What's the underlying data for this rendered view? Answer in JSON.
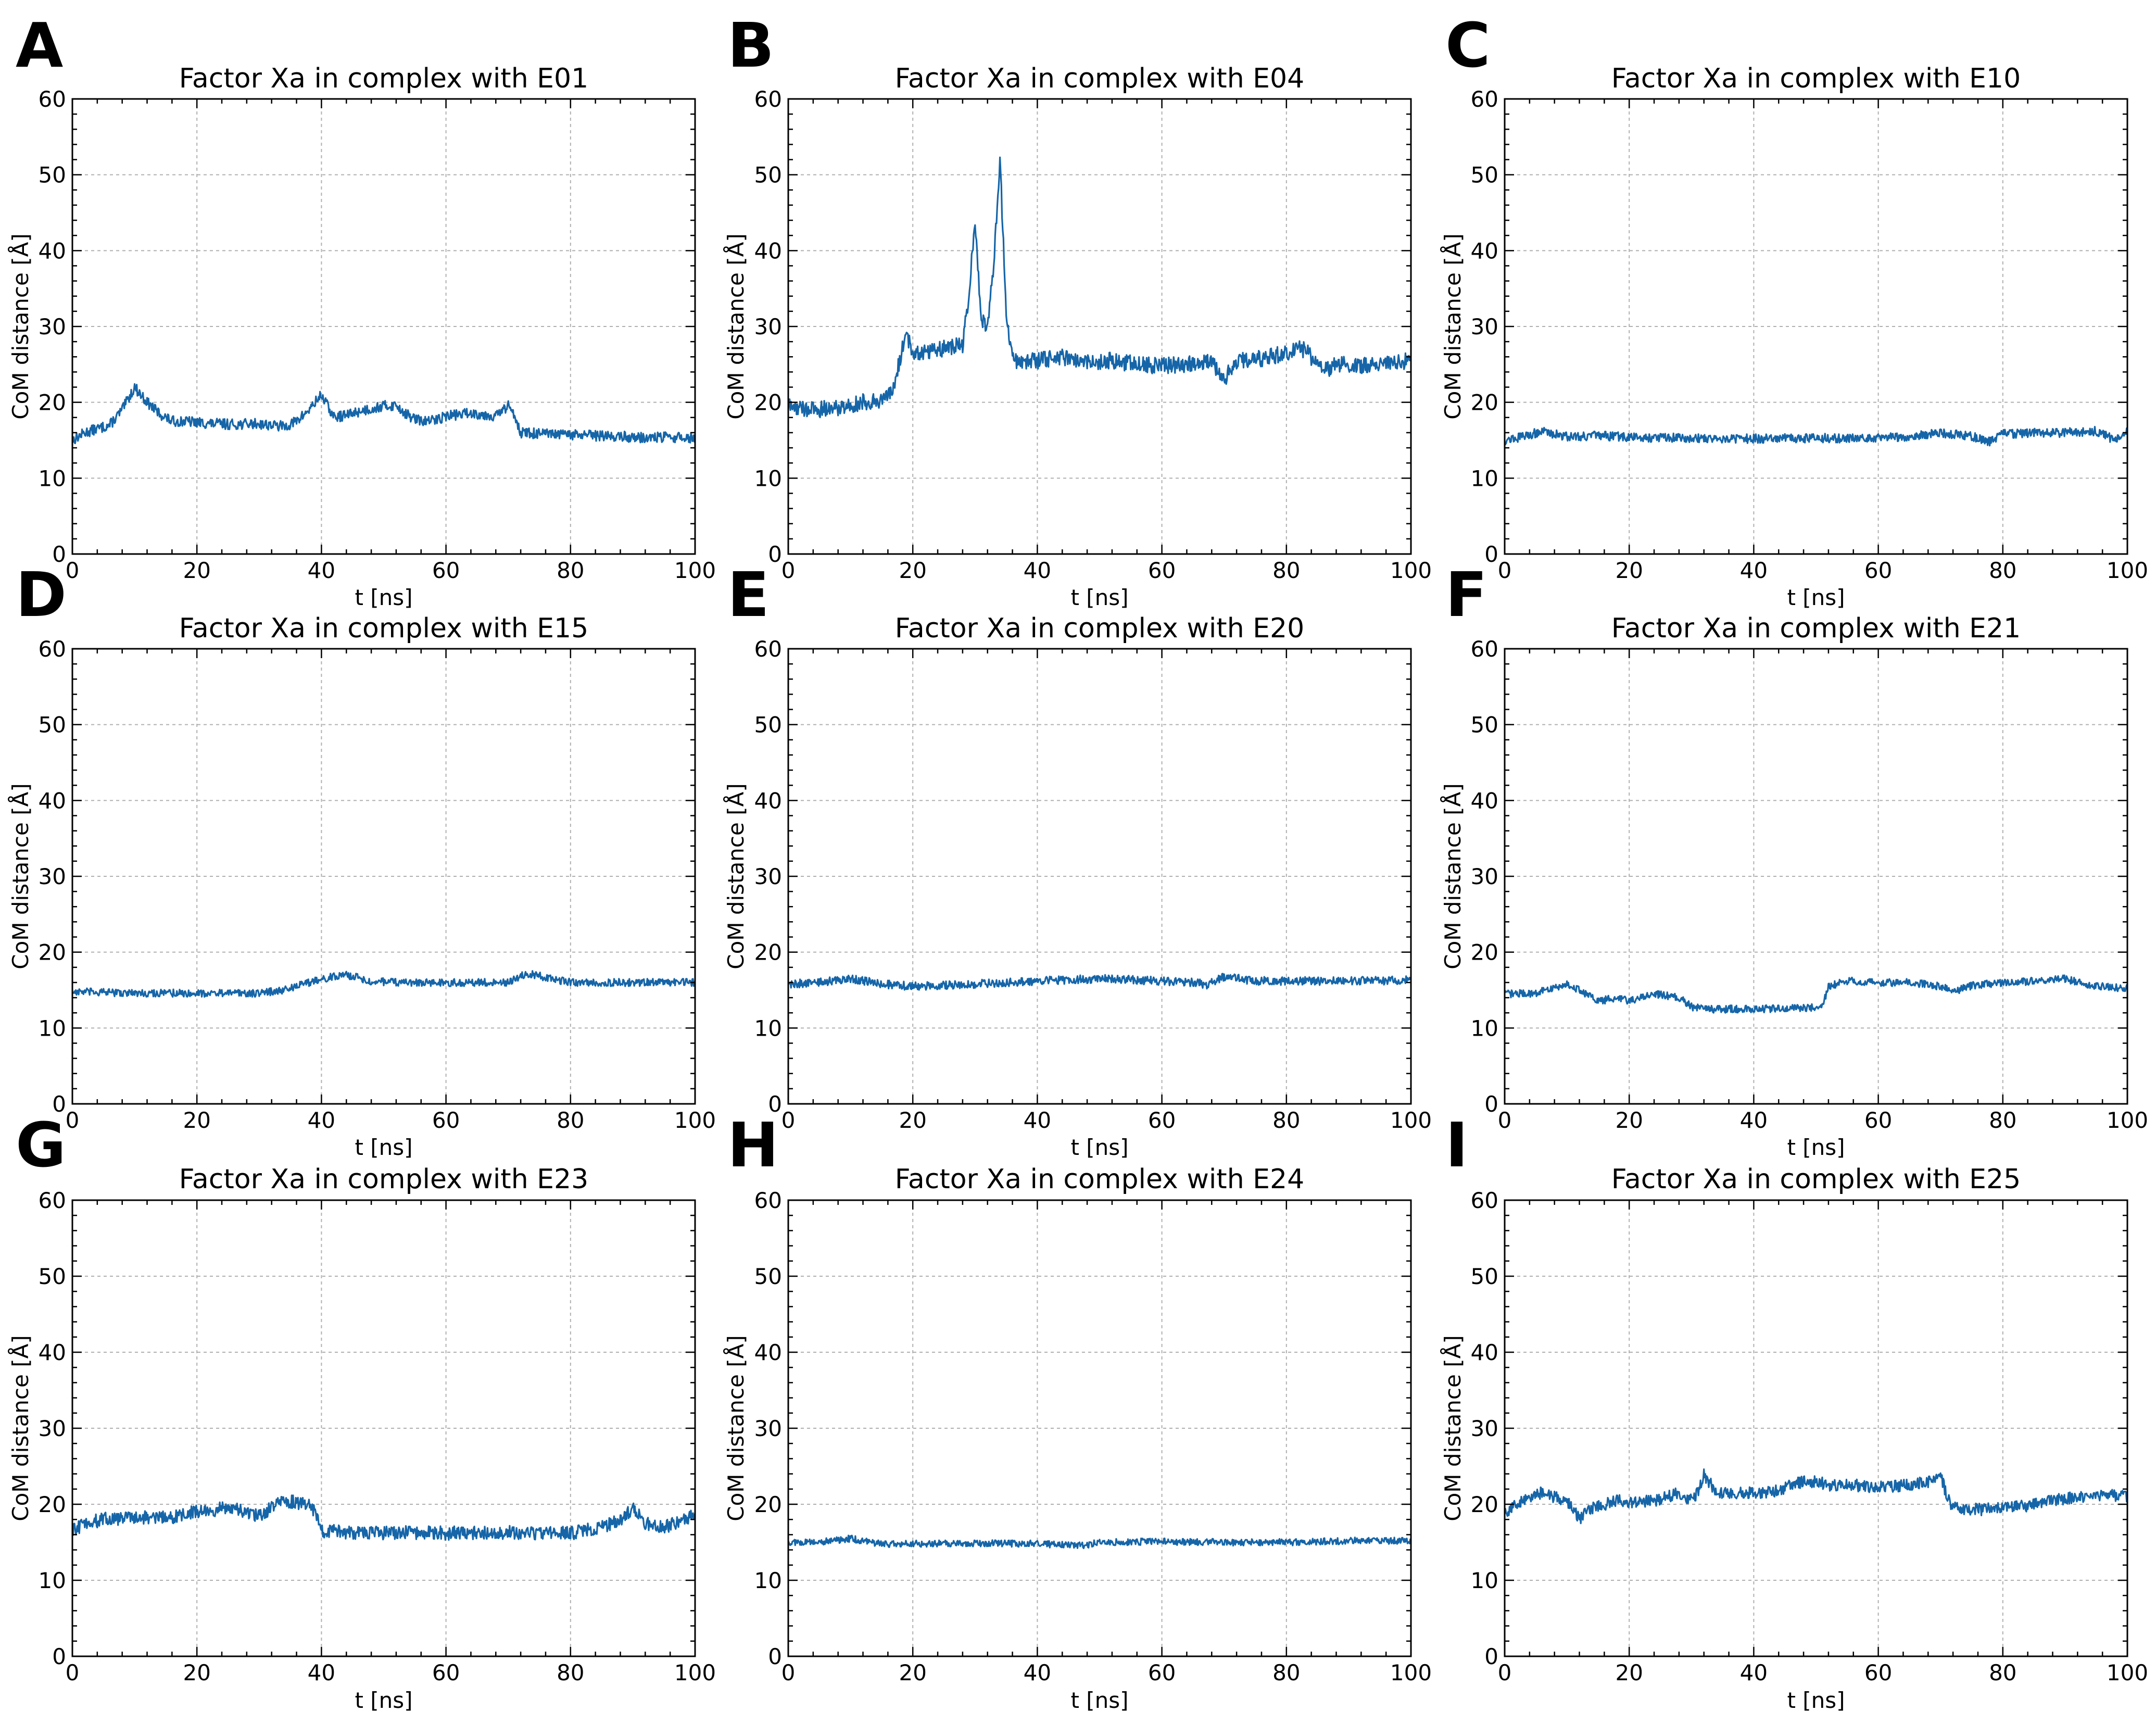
{
  "figure": {
    "series_color": "#1565a8"
  },
  "chart_data": [
    {
      "panel": "A",
      "type": "line",
      "title": "Factor Xa in complex with E01",
      "xlabel": "t [ns]",
      "ylabel": "CoM distance [Å]",
      "xlim": [
        0,
        100
      ],
      "ylim": [
        0,
        60
      ],
      "xticks": [
        "0",
        "20",
        "40",
        "60",
        "80",
        "100"
      ],
      "yticks": [
        "0",
        "10",
        "20",
        "30",
        "40",
        "50",
        "60"
      ],
      "series": [
        {
          "name": "CoM distance",
          "color": "#1565a8",
          "x": [
            0,
            2,
            4,
            6,
            8,
            10,
            12,
            14,
            16,
            18,
            22,
            26,
            30,
            34,
            36,
            38,
            40,
            42,
            44,
            46,
            50,
            52,
            54,
            56,
            58,
            60,
            64,
            68,
            70,
            71,
            72,
            76,
            80,
            84,
            88,
            92,
            96,
            100
          ],
          "y": [
            15,
            16,
            16.5,
            17,
            19,
            22,
            20,
            18.5,
            17.5,
            17.5,
            17.2,
            17.1,
            17.2,
            16.8,
            17.5,
            19,
            21,
            18,
            18.3,
            18.8,
            19.5,
            19.6,
            18.2,
            17.5,
            17.6,
            18.2,
            18.6,
            18.2,
            19.5,
            18.5,
            16,
            15.8,
            15.7,
            15.6,
            15.5,
            15.3,
            15.4,
            15.3
          ],
          "noise": 0.7
        }
      ]
    },
    {
      "panel": "B",
      "type": "line",
      "title": "Factor Xa in complex with E04",
      "xlabel": "t [ns]",
      "ylabel": "CoM distance [Å]",
      "xlim": [
        0,
        100
      ],
      "ylim": [
        0,
        60
      ],
      "xticks": [
        "0",
        "20",
        "40",
        "60",
        "80",
        "100"
      ],
      "yticks": [
        "0",
        "10",
        "20",
        "30",
        "40",
        "50",
        "60"
      ],
      "series": [
        {
          "name": "CoM distance",
          "color": "#1565a8",
          "x": [
            0,
            4,
            8,
            12,
            16,
            17,
            18,
            19,
            20,
            24,
            28,
            29,
            30,
            31,
            32,
            33,
            34,
            35,
            36,
            40,
            44,
            48,
            52,
            56,
            60,
            64,
            68,
            70,
            72,
            76,
            80,
            82,
            84,
            86,
            88,
            92,
            96,
            100
          ],
          "y": [
            19.5,
            19,
            19.3,
            20,
            20.5,
            22,
            26,
            29,
            26.5,
            27,
            27.5,
            34,
            44,
            31,
            30,
            38,
            52,
            32,
            25.5,
            25.5,
            26,
            25.3,
            25.5,
            25,
            24.8,
            25,
            25.5,
            23,
            25.5,
            25.8,
            26.5,
            27.5,
            26,
            24,
            25,
            24.8,
            25.3,
            25.5
          ],
          "noise": 1.1
        }
      ]
    },
    {
      "panel": "C",
      "type": "line",
      "title": "Factor Xa in complex with E10",
      "xlabel": "t [ns]",
      "ylabel": "CoM distance [Å]",
      "xlim": [
        0,
        100
      ],
      "ylim": [
        0,
        60
      ],
      "xticks": [
        "0",
        "20",
        "40",
        "60",
        "80",
        "100"
      ],
      "yticks": [
        "0",
        "10",
        "20",
        "30",
        "40",
        "50",
        "60"
      ],
      "series": [
        {
          "name": "CoM distance",
          "color": "#1565a8",
          "x": [
            0,
            3,
            6,
            10,
            15,
            20,
            30,
            40,
            50,
            55,
            60,
            65,
            70,
            75,
            78,
            80,
            85,
            90,
            95,
            98,
            100
          ],
          "y": [
            15,
            15.5,
            16.2,
            15.5,
            15.6,
            15.4,
            15.3,
            15.2,
            15.3,
            15.2,
            15.4,
            15.5,
            16,
            15.5,
            14.8,
            15.8,
            16,
            16,
            16.2,
            15,
            16.2
          ],
          "noise": 0.6
        }
      ]
    },
    {
      "panel": "D",
      "type": "line",
      "title": "Factor Xa in complex with E15",
      "xlabel": "t [ns]",
      "ylabel": "CoM distance [Å]",
      "xlim": [
        0,
        100
      ],
      "ylim": [
        0,
        60
      ],
      "xticks": [
        "0",
        "20",
        "40",
        "60",
        "80",
        "100"
      ],
      "yticks": [
        "0",
        "10",
        "20",
        "30",
        "40",
        "50",
        "60"
      ],
      "series": [
        {
          "name": "CoM distance",
          "color": "#1565a8",
          "x": [
            0,
            10,
            20,
            30,
            34,
            38,
            40,
            44,
            48,
            52,
            60,
            70,
            73,
            80,
            90,
            100
          ],
          "y": [
            14.8,
            14.6,
            14.6,
            14.6,
            15,
            16,
            16.5,
            17,
            16.2,
            16,
            16,
            16,
            17.2,
            16,
            16,
            16
          ],
          "noise": 0.5
        }
      ]
    },
    {
      "panel": "E",
      "type": "line",
      "title": "Factor Xa in complex with E20",
      "xlabel": "t [ns]",
      "ylabel": "CoM distance [Å]",
      "xlim": [
        0,
        100
      ],
      "ylim": [
        0,
        60
      ],
      "xticks": [
        "0",
        "20",
        "40",
        "60",
        "80",
        "100"
      ],
      "yticks": [
        "0",
        "10",
        "20",
        "30",
        "40",
        "50",
        "60"
      ],
      "series": [
        {
          "name": "CoM distance",
          "color": "#1565a8",
          "x": [
            0,
            5,
            10,
            15,
            20,
            25,
            30,
            40,
            50,
            60,
            66,
            67,
            70,
            75,
            80,
            90,
            100
          ],
          "y": [
            15.8,
            16,
            16.5,
            15.8,
            15.5,
            15.6,
            15.8,
            16.2,
            16.5,
            16.2,
            16,
            15.6,
            16.8,
            16.2,
            16.2,
            16.2,
            16.3
          ],
          "noise": 0.55
        }
      ]
    },
    {
      "panel": "F",
      "type": "line",
      "title": "Factor Xa in complex with E21",
      "xlabel": "t [ns]",
      "ylabel": "CoM distance [Å]",
      "xlim": [
        0,
        100
      ],
      "ylim": [
        0,
        60
      ],
      "xticks": [
        "0",
        "20",
        "40",
        "60",
        "80",
        "100"
      ],
      "yticks": [
        "0",
        "10",
        "20",
        "30",
        "40",
        "50",
        "60"
      ],
      "series": [
        {
          "name": "CoM distance",
          "color": "#1565a8",
          "x": [
            0,
            5,
            10,
            12,
            15,
            18,
            20,
            24,
            28,
            30,
            32,
            40,
            48,
            51,
            52,
            55,
            60,
            65,
            70,
            72,
            75,
            80,
            85,
            90,
            95,
            100
          ],
          "y": [
            14.5,
            14.6,
            15.8,
            15,
            13.5,
            14,
            13.6,
            14.5,
            14,
            12.8,
            12.5,
            12.5,
            12.6,
            12.8,
            15.5,
            16.2,
            16,
            16,
            15.5,
            14.8,
            15.6,
            16,
            16.2,
            16.5,
            15.5,
            15.2
          ],
          "noise": 0.5
        }
      ]
    },
    {
      "panel": "G",
      "type": "line",
      "title": "Factor Xa in complex with E23",
      "xlabel": "t [ns]",
      "ylabel": "CoM distance [Å]",
      "xlim": [
        0,
        100
      ],
      "ylim": [
        0,
        60
      ],
      "xticks": [
        "0",
        "20",
        "40",
        "60",
        "80",
        "100"
      ],
      "yticks": [
        "0",
        "10",
        "20",
        "30",
        "40",
        "50",
        "60"
      ],
      "series": [
        {
          "name": "CoM distance",
          "color": "#1565a8",
          "x": [
            0,
            2,
            5,
            10,
            15,
            20,
            25,
            30,
            32,
            34,
            38,
            39,
            40,
            45,
            50,
            55,
            60,
            70,
            80,
            85,
            88,
            90,
            92,
            95,
            100
          ],
          "y": [
            16.5,
            17.5,
            18,
            18.3,
            18.2,
            19,
            19.5,
            18.5,
            19.5,
            20.5,
            20,
            19,
            16.5,
            16.3,
            16.2,
            16.3,
            16.2,
            16.3,
            16.2,
            17,
            18,
            19.5,
            17.5,
            17,
            18.5
          ],
          "noise": 0.9
        }
      ]
    },
    {
      "panel": "H",
      "type": "line",
      "title": "Factor Xa in complex with E24",
      "xlabel": "t [ns]",
      "ylabel": "CoM distance [Å]",
      "xlim": [
        0,
        100
      ],
      "ylim": [
        0,
        60
      ],
      "xticks": [
        "0",
        "20",
        "40",
        "60",
        "80",
        "100"
      ],
      "yticks": [
        "0",
        "10",
        "20",
        "30",
        "40",
        "50",
        "60"
      ],
      "series": [
        {
          "name": "CoM distance",
          "color": "#1565a8",
          "x": [
            0,
            5,
            10,
            15,
            20,
            30,
            40,
            48,
            50,
            60,
            70,
            80,
            90,
            100
          ],
          "y": [
            15,
            15,
            15.5,
            14.8,
            14.8,
            14.9,
            14.8,
            14.6,
            15,
            15.1,
            15,
            15,
            15.2,
            15.2
          ],
          "noise": 0.45
        }
      ]
    },
    {
      "panel": "I",
      "type": "line",
      "title": "Factor Xa in complex with E25",
      "xlabel": "t [ns]",
      "ylabel": "CoM distance [Å]",
      "xlim": [
        0,
        100
      ],
      "ylim": [
        0,
        60
      ],
      "xticks": [
        "0",
        "20",
        "40",
        "60",
        "80",
        "100"
      ],
      "yticks": [
        "0",
        "10",
        "20",
        "30",
        "40",
        "50",
        "60"
      ],
      "series": [
        {
          "name": "CoM distance",
          "color": "#1565a8",
          "x": [
            0,
            2,
            4,
            6,
            8,
            10,
            12,
            14,
            16,
            18,
            20,
            24,
            26,
            28,
            30,
            31,
            32,
            34,
            38,
            40,
            44,
            46,
            48,
            50,
            52,
            56,
            60,
            64,
            68,
            70,
            71,
            72,
            76,
            80,
            84,
            88,
            92,
            96,
            100
          ],
          "y": [
            19,
            20,
            21,
            21.5,
            21,
            20.5,
            18,
            19.5,
            20,
            20.5,
            20.3,
            20.5,
            21,
            21.5,
            20.5,
            21.5,
            24,
            21.5,
            21.5,
            21.5,
            21.8,
            22.5,
            23,
            23,
            22.5,
            22.5,
            22.3,
            22.5,
            23,
            24,
            21,
            19.5,
            19.3,
            19.5,
            19.8,
            20.5,
            21,
            21.3,
            21
          ],
          "noise": 0.8
        }
      ]
    }
  ]
}
